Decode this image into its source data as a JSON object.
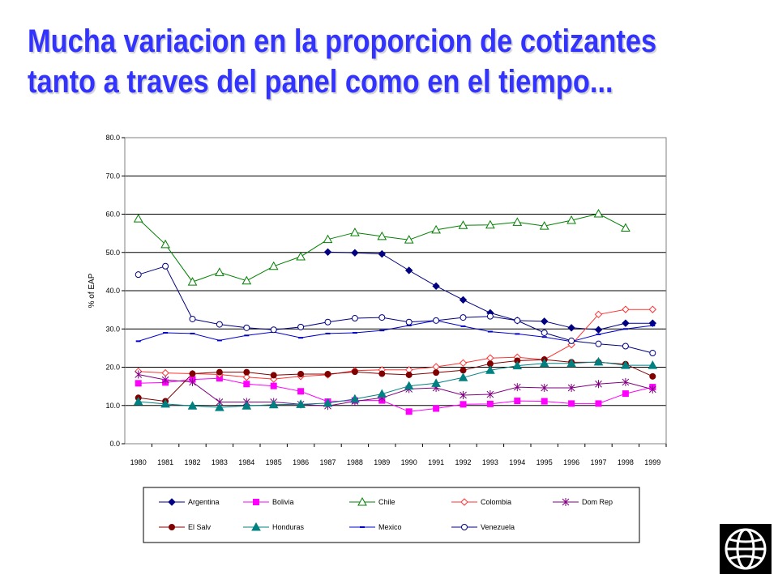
{
  "slide": {
    "title_line1": "Mucha variacion en la proporcion de cotizantes",
    "title_line2": "tanto a traves del panel como en el tiempo..."
  },
  "chart_data": {
    "type": "line",
    "title": "",
    "xlabel": "",
    "ylabel": "% of EAP",
    "ylim": [
      0,
      80
    ],
    "yticks": [
      "0.0",
      "10.0",
      "20.0",
      "30.0",
      "40.0",
      "50.0",
      "60.0",
      "70.0",
      "80.0"
    ],
    "categories": [
      "1980",
      "1981",
      "1982",
      "1983",
      "1984",
      "1985",
      "1986",
      "1987",
      "1988",
      "1989",
      "1990",
      "1991",
      "1992",
      "1993",
      "1994",
      "1995",
      "1996",
      "1997",
      "1998",
      "1999"
    ],
    "grid": "horizontal",
    "legend_position": "bottom",
    "series": [
      {
        "name": "Argentina",
        "color": "#000080",
        "marker": "diamond-filled",
        "values": [
          null,
          null,
          null,
          null,
          null,
          null,
          null,
          50.1,
          49.9,
          49.6,
          45.3,
          41.2,
          37.6,
          34.2,
          32.2,
          32.0,
          30.3,
          29.8,
          31.5,
          31.5
        ]
      },
      {
        "name": "Bolivia",
        "color": "#ff00ff",
        "marker": "square-filled",
        "values": [
          15.8,
          16.0,
          16.8,
          17.1,
          15.6,
          15.1,
          13.7,
          11.0,
          11.3,
          11.3,
          8.4,
          9.2,
          10.3,
          10.4,
          11.2,
          11.1,
          10.5,
          10.5,
          13.1,
          14.8
        ]
      },
      {
        "name": "Chile",
        "color": "#008000",
        "marker": "triangle-open",
        "values": [
          58.8,
          52.1,
          42.3,
          44.8,
          42.6,
          46.4,
          48.9,
          53.4,
          55.2,
          54.2,
          53.3,
          55.9,
          57.1,
          57.2,
          57.9,
          56.9,
          58.4,
          60.1,
          56.4,
          null
        ]
      },
      {
        "name": "Colombia",
        "color": "#ff3333",
        "marker": "diamond-open",
        "values": [
          18.9,
          18.5,
          18.3,
          18.1,
          17.4,
          16.9,
          17.6,
          18.0,
          19.1,
          19.3,
          19.3,
          20.1,
          21.1,
          22.4,
          22.6,
          22.0,
          25.9,
          33.8,
          35.1,
          35.1
        ]
      },
      {
        "name": "Dom Rep",
        "color": "#800080",
        "marker": "asterisk",
        "values": [
          18.1,
          16.7,
          16.1,
          10.9,
          10.9,
          10.9,
          10.3,
          9.9,
          11.1,
          12.0,
          14.3,
          14.6,
          12.7,
          12.9,
          14.8,
          14.6,
          14.6,
          15.6,
          16.1,
          14.2
        ]
      },
      {
        "name": "El Salv",
        "color": "#800000",
        "marker": "circle-filled",
        "values": [
          12.0,
          11.1,
          18.3,
          18.7,
          18.7,
          17.9,
          18.2,
          18.2,
          18.8,
          18.3,
          18.0,
          18.6,
          19.2,
          20.9,
          21.7,
          22.0,
          21.3,
          21.3,
          20.8,
          17.6
        ]
      },
      {
        "name": "Honduras",
        "color": "#008080",
        "marker": "triangle-filled",
        "values": [
          11.0,
          10.4,
          9.9,
          9.5,
          9.9,
          10.2,
          10.3,
          10.6,
          11.7,
          13.0,
          15.1,
          15.8,
          17.3,
          19.2,
          20.4,
          21.0,
          21.0,
          21.4,
          20.5,
          20.5
        ]
      },
      {
        "name": "Mexico",
        "color": "#0000cc",
        "marker": "dash",
        "values": [
          26.8,
          29.0,
          28.8,
          27.0,
          28.3,
          29.2,
          27.7,
          28.8,
          29.0,
          29.6,
          30.9,
          32.2,
          30.7,
          29.3,
          28.7,
          27.9,
          26.7,
          28.6,
          30.0,
          30.9
        ]
      },
      {
        "name": "Venezuela",
        "color": "#000080",
        "marker": "circle-open",
        "values": [
          44.2,
          46.4,
          32.6,
          31.2,
          30.3,
          29.8,
          30.5,
          31.8,
          32.8,
          33.0,
          31.8,
          32.2,
          33.0,
          33.3,
          32.2,
          29.0,
          26.9,
          26.1,
          25.5,
          23.7
        ]
      }
    ]
  },
  "logo": {
    "name": "globe-logo"
  }
}
